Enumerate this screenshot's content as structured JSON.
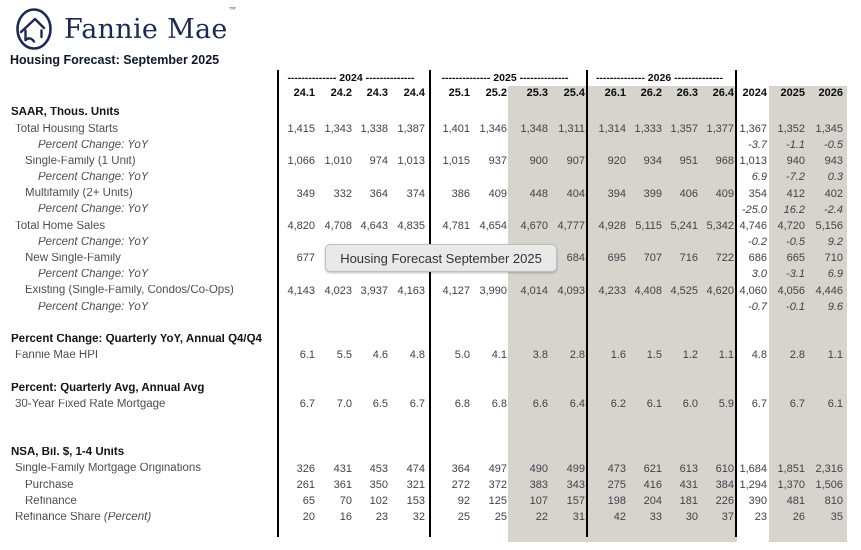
{
  "brand": {
    "logo_text": "Fannie Mae",
    "trademark": "™"
  },
  "title": "Housing Forecast: September 2025",
  "tooltip": "Housing Forecast September 2025",
  "colors": {
    "brand_navy": "#1d2950",
    "forecast_shading": "#d7d4ce",
    "separator_line": "#000000",
    "tooltip_background": "#e9e9e9"
  },
  "table": {
    "group_headers": [
      "-------------- 2024 --------------",
      "-------------- 2025 --------------",
      "-------------- 2026 --------------"
    ],
    "col_headers": [
      "24.1",
      "24.2",
      "24.3",
      "24.4",
      "25.1",
      "25.2",
      "25.3",
      "25.4",
      "26.1",
      "26.2",
      "26.3",
      "26.4",
      "2024",
      "2025",
      "2026"
    ],
    "rows": [
      {
        "type": "section",
        "indent": 0,
        "label": "SAAR, Thous. Units",
        "values": []
      },
      {
        "type": "data",
        "indent": 1,
        "label": "Total Housing Starts",
        "values": [
          "1,415",
          "1,343",
          "1,338",
          "1,387",
          "1,401",
          "1,346",
          "1,348",
          "1,311",
          "1,314",
          "1,333",
          "1,357",
          "1,377",
          "1,367",
          "1,352",
          "1,345"
        ]
      },
      {
        "type": "pct",
        "indent": 3,
        "label": "Percent Change: YoY",
        "values": [
          "",
          "",
          "",
          "",
          "",
          "",
          "",
          "",
          "",
          "",
          "",
          "",
          "-3.7",
          "-1.1",
          "-0.5"
        ]
      },
      {
        "type": "data",
        "indent": 2,
        "label": "Single-Family (1 Unit)",
        "values": [
          "1,066",
          "1,010",
          "974",
          "1,013",
          "1,015",
          "937",
          "900",
          "907",
          "920",
          "934",
          "951",
          "968",
          "1,013",
          "940",
          "943"
        ]
      },
      {
        "type": "pct",
        "indent": 3,
        "label": "Percent Change: YoY",
        "values": [
          "",
          "",
          "",
          "",
          "",
          "",
          "",
          "",
          "",
          "",
          "",
          "",
          "6.9",
          "-7.2",
          "0.3"
        ]
      },
      {
        "type": "data",
        "indent": 2,
        "label": "Multifamily (2+ Units)",
        "values": [
          "349",
          "332",
          "364",
          "374",
          "386",
          "409",
          "448",
          "404",
          "394",
          "399",
          "406",
          "409",
          "354",
          "412",
          "402"
        ]
      },
      {
        "type": "pct",
        "indent": 3,
        "label": "Percent Change: YoY",
        "values": [
          "",
          "",
          "",
          "",
          "",
          "",
          "",
          "",
          "",
          "",
          "",
          "",
          "-25.0",
          "16.2",
          "-2.4"
        ]
      },
      {
        "type": "data",
        "indent": 1,
        "label": "Total Home Sales",
        "values": [
          "4,820",
          "4,708",
          "4,643",
          "4,835",
          "4,781",
          "4,654",
          "4,670",
          "4,777",
          "4,928",
          "5,115",
          "5,241",
          "5,342",
          "4,746",
          "4,720",
          "5,156"
        ]
      },
      {
        "type": "pct",
        "indent": 3,
        "label": "Percent Change: YoY",
        "values": [
          "",
          "",
          "",
          "",
          "",
          "",
          "",
          "",
          "",
          "",
          "",
          "",
          "-0.2",
          "-0.5",
          "9.2"
        ]
      },
      {
        "type": "data",
        "indent": 2,
        "label": "New Single-Family",
        "values": [
          "677",
          "",
          "",
          "",
          "",
          "",
          "656",
          "684",
          "695",
          "707",
          "716",
          "722",
          "686",
          "665",
          "710"
        ]
      },
      {
        "type": "pct",
        "indent": 3,
        "label": "Percent Change: YoY",
        "values": [
          "",
          "",
          "",
          "",
          "",
          "",
          "",
          "",
          "",
          "",
          "",
          "",
          "3.0",
          "-3.1",
          "6.9"
        ]
      },
      {
        "type": "data",
        "indent": 2,
        "label": "Existing (Single-Family, Condos/Co-Ops)",
        "values": [
          "4,143",
          "4,023",
          "3,937",
          "4,163",
          "4,127",
          "3,990",
          "4,014",
          "4,093",
          "4,233",
          "4,408",
          "4,525",
          "4,620",
          "4,060",
          "4,056",
          "4,446"
        ]
      },
      {
        "type": "pct",
        "indent": 3,
        "label": "Percent Change: YoY",
        "values": [
          "",
          "",
          "",
          "",
          "",
          "",
          "",
          "",
          "",
          "",
          "",
          "",
          "-0.7",
          "-0.1",
          "9.6"
        ]
      },
      {
        "type": "blank",
        "indent": 0,
        "label": "",
        "values": []
      },
      {
        "type": "section",
        "indent": 0,
        "label": "Percent Change: Quarterly YoY, Annual Q4/Q4",
        "values": []
      },
      {
        "type": "data",
        "indent": 1,
        "label": "Fannie Mae HPI",
        "values": [
          "6.1",
          "5.5",
          "4.6",
          "4.8",
          "5.0",
          "4.1",
          "3.8",
          "2.8",
          "1.6",
          "1.5",
          "1.2",
          "1.1",
          "4.8",
          "2.8",
          "1.1"
        ]
      },
      {
        "type": "blank",
        "indent": 0,
        "label": "",
        "values": []
      },
      {
        "type": "section",
        "indent": 0,
        "label": "Percent: Quarterly Avg, Annual Avg",
        "values": []
      },
      {
        "type": "data",
        "indent": 1,
        "label": "30-Year Fixed Rate Mortgage",
        "values": [
          "6.7",
          "7.0",
          "6.5",
          "6.7",
          "6.8",
          "6.8",
          "6.6",
          "6.4",
          "6.2",
          "6.1",
          "6.0",
          "5.9",
          "6.7",
          "6.7",
          "6.1"
        ]
      },
      {
        "type": "blank",
        "indent": 0,
        "label": "",
        "values": []
      },
      {
        "type": "blank",
        "indent": 0,
        "label": "",
        "values": []
      },
      {
        "type": "section",
        "indent": 0,
        "label": "NSA, Bil. $, 1-4 Units",
        "values": []
      },
      {
        "type": "data",
        "indent": 1,
        "label": "Single-Family Mortgage Originations",
        "values": [
          "326",
          "431",
          "453",
          "474",
          "364",
          "497",
          "490",
          "499",
          "473",
          "621",
          "613",
          "610",
          "1,684",
          "1,851",
          "2,316"
        ]
      },
      {
        "type": "data",
        "indent": 2,
        "label": "Purchase",
        "values": [
          "261",
          "361",
          "350",
          "321",
          "272",
          "372",
          "383",
          "343",
          "275",
          "416",
          "431",
          "384",
          "1,294",
          "1,370",
          "1,506"
        ]
      },
      {
        "type": "data",
        "indent": 2,
        "label": "Refinance",
        "values": [
          "65",
          "70",
          "102",
          "153",
          "92",
          "125",
          "107",
          "157",
          "198",
          "204",
          "181",
          "226",
          "390",
          "481",
          "810"
        ]
      },
      {
        "type": "data",
        "indent": 1,
        "label": "Refinance Share ",
        "label_italic": "(Percent)",
        "values": [
          "20",
          "16",
          "23",
          "32",
          "25",
          "25",
          "22",
          "31",
          "42",
          "33",
          "30",
          "37",
          "23",
          "26",
          "35"
        ]
      }
    ]
  }
}
